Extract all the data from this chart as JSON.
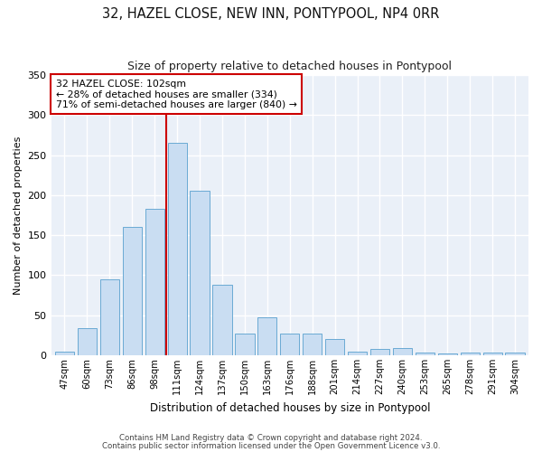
{
  "title1": "32, HAZEL CLOSE, NEW INN, PONTYPOOL, NP4 0RR",
  "title2": "Size of property relative to detached houses in Pontypool",
  "xlabel": "Distribution of detached houses by size in Pontypool",
  "ylabel": "Number of detached properties",
  "categories": [
    "47sqm",
    "60sqm",
    "73sqm",
    "86sqm",
    "98sqm",
    "111sqm",
    "124sqm",
    "137sqm",
    "150sqm",
    "163sqm",
    "176sqm",
    "188sqm",
    "201sqm",
    "214sqm",
    "227sqm",
    "240sqm",
    "253sqm",
    "265sqm",
    "278sqm",
    "291sqm",
    "304sqm"
  ],
  "values": [
    5,
    34,
    95,
    160,
    183,
    265,
    205,
    88,
    27,
    47,
    27,
    27,
    20,
    5,
    8,
    9,
    3,
    2,
    3,
    3,
    3
  ],
  "bar_color": "#c9ddf2",
  "bar_edge_color": "#6aaad4",
  "annotation_line1": "32 HAZEL CLOSE: 102sqm",
  "annotation_line2": "← 28% of detached houses are smaller (334)",
  "annotation_line3": "71% of semi-detached houses are larger (840) →",
  "vline_x": 4.5,
  "vline_color": "#cc0000",
  "box_color": "#cc0000",
  "bg_color": "#eaf0f8",
  "grid_color": "#ffffff",
  "footer1": "Contains HM Land Registry data © Crown copyright and database right 2024.",
  "footer2": "Contains public sector information licensed under the Open Government Licence v3.0.",
  "ylim": [
    0,
    350
  ],
  "bar_width": 0.85
}
